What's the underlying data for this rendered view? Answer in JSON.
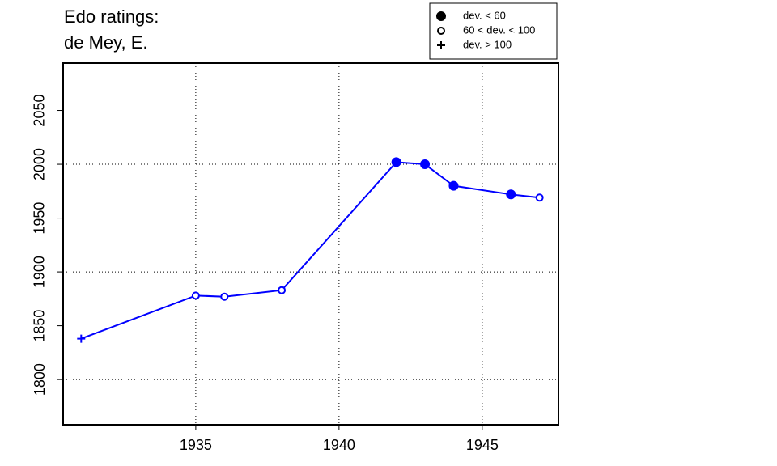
{
  "chart_data": {
    "type": "line",
    "title": "Edo ratings:",
    "subtitle": "de Mey, E.",
    "x": [
      1931,
      1935,
      1936,
      1938,
      1942,
      1943,
      1944,
      1946,
      1947
    ],
    "series": [
      {
        "color": "#0000ff",
        "values": [
          1838,
          1878,
          1877,
          1883,
          2002,
          2000,
          1980,
          1972,
          1969
        ],
        "markers": [
          "plus",
          "open",
          "open",
          "open",
          "filled",
          "filled",
          "filled",
          "filled",
          "open"
        ]
      }
    ],
    "xlim": [
      1930.37,
      1947.66
    ],
    "ylim": [
      1758,
      2094
    ],
    "xticks": [
      1935,
      1940,
      1945
    ],
    "yticks": [
      1800,
      1850,
      1900,
      1950,
      2000,
      2050
    ],
    "xgrid": [
      1935,
      1940,
      1945
    ],
    "ygrid": [
      1800,
      1900,
      2000
    ],
    "legend": [
      {
        "label": "dev. < 60",
        "marker": "filled"
      },
      {
        "label": "60 < dev. < 100",
        "marker": "open"
      },
      {
        "label": "dev. > 100",
        "marker": "plus"
      }
    ]
  }
}
